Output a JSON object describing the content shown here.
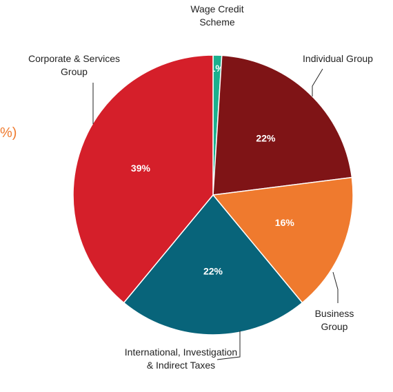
{
  "chart_data": {
    "type": "pie",
    "categories": [
      "Wage Credit Scheme",
      "Individual Group",
      "Business Group",
      "International, Investigation & Indirect Taxes",
      "Corporate & Services Group"
    ],
    "values": [
      1,
      22,
      16,
      22,
      39
    ],
    "value_labels": [
      "1%",
      "22%",
      "16%",
      "22%",
      "39%"
    ],
    "colors": [
      "#1bb08e",
      "#7f1416",
      "#ef7a2e",
      "#08647a",
      "#d51f2a"
    ],
    "clipped_text": "%)"
  }
}
